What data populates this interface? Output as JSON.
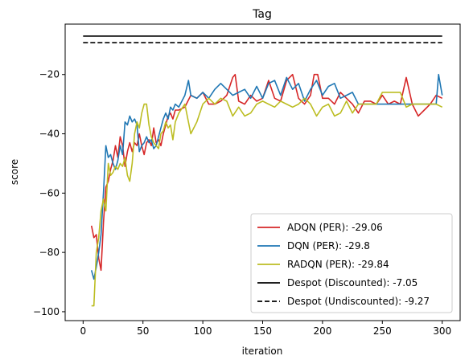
{
  "chart_data": {
    "type": "line",
    "title": "Tag",
    "xlabel": "iteration",
    "ylabel": "score",
    "xlim": [
      -15,
      315
    ],
    "ylim": [
      -103,
      -3
    ],
    "xticks": [
      0,
      50,
      100,
      150,
      200,
      250,
      300
    ],
    "yticks": [
      -100,
      -80,
      -60,
      -40,
      -20
    ],
    "grid": false,
    "legend_position": "lower-right",
    "series": [
      {
        "name": "ADQN (PER): -29.06",
        "color": "#d62728",
        "style": "solid",
        "x": [
          7,
          9,
          11,
          13,
          15,
          17,
          19,
          21,
          23,
          25,
          27,
          29,
          31,
          33,
          35,
          37,
          39,
          41,
          43,
          45,
          47,
          49,
          51,
          53,
          55,
          57,
          59,
          61,
          63,
          65,
          67,
          69,
          71,
          73,
          75,
          77,
          80,
          85,
          90,
          95,
          100,
          105,
          110,
          115,
          120,
          125,
          127,
          130,
          135,
          140,
          145,
          150,
          155,
          160,
          165,
          170,
          175,
          180,
          185,
          190,
          193,
          196,
          200,
          205,
          210,
          215,
          220,
          225,
          230,
          235,
          240,
          245,
          250,
          255,
          260,
          265,
          270,
          275,
          280,
          285,
          290,
          295,
          300
        ],
        "y": [
          -71,
          -75,
          -74,
          -82,
          -86,
          -70,
          -58,
          -56,
          -52,
          -49,
          -44,
          -48,
          -41,
          -44,
          -51,
          -46,
          -43,
          -46,
          -43,
          -44,
          -40,
          -44,
          -47,
          -43,
          -42,
          -44,
          -38,
          -43,
          -42,
          -44,
          -40,
          -37,
          -34,
          -33,
          -35,
          -32,
          -32,
          -31,
          -27,
          -28,
          -26,
          -30,
          -30,
          -29,
          -27,
          -21,
          -20,
          -29,
          -30,
          -27,
          -29,
          -28,
          -22,
          -28,
          -29,
          -22,
          -20,
          -28,
          -30,
          -27,
          -20,
          -20,
          -28,
          -28,
          -30,
          -26,
          -28,
          -30,
          -33,
          -29,
          -29,
          -30,
          -27,
          -30,
          -29,
          -30,
          -21,
          -30,
          -34,
          -32,
          -30,
          -27,
          -28
        ]
      },
      {
        "name": "DQN (PER): -29.8",
        "color": "#1f77b4",
        "style": "solid",
        "x": [
          7,
          9,
          11,
          13,
          15,
          17,
          19,
          21,
          23,
          25,
          27,
          29,
          31,
          33,
          35,
          37,
          39,
          41,
          43,
          45,
          47,
          49,
          51,
          53,
          55,
          57,
          59,
          61,
          63,
          65,
          67,
          69,
          71,
          73,
          75,
          77,
          80,
          85,
          88,
          90,
          95,
          100,
          105,
          110,
          115,
          120,
          125,
          130,
          135,
          140,
          145,
          150,
          155,
          160,
          165,
          170,
          175,
          180,
          185,
          190,
          195,
          200,
          205,
          210,
          215,
          220,
          225,
          230,
          235,
          240,
          245,
          250,
          255,
          260,
          265,
          270,
          275,
          280,
          285,
          290,
          295,
          297,
          300
        ],
        "y": [
          -86,
          -89,
          -85,
          -80,
          -74,
          -60,
          -44,
          -48,
          -47,
          -50,
          -52,
          -49,
          -44,
          -47,
          -36,
          -37,
          -34,
          -36,
          -35,
          -37,
          -46,
          -44,
          -43,
          -41,
          -43,
          -42,
          -45,
          -44,
          -41,
          -38,
          -35,
          -33,
          -35,
          -31,
          -32,
          -30,
          -31,
          -27,
          -22,
          -27,
          -28,
          -26,
          -28,
          -25,
          -23,
          -25,
          -27,
          -26,
          -25,
          -28,
          -24,
          -28,
          -23,
          -22,
          -27,
          -21,
          -25,
          -23,
          -29,
          -25,
          -22,
          -27,
          -24,
          -23,
          -28,
          -27,
          -26,
          -30,
          -30,
          -30,
          -30,
          -30,
          -30,
          -30,
          -30,
          -30,
          -30,
          -30,
          -30,
          -30,
          -30,
          -20,
          -27
        ]
      },
      {
        "name": "RADQN (PER): -29.84",
        "color": "#bcbd22",
        "style": "solid",
        "x": [
          7,
          9,
          11,
          13,
          15,
          17,
          19,
          21,
          23,
          25,
          27,
          29,
          31,
          33,
          35,
          37,
          39,
          41,
          43,
          45,
          47,
          49,
          51,
          53,
          55,
          57,
          59,
          61,
          63,
          65,
          67,
          69,
          71,
          73,
          75,
          77,
          80,
          85,
          90,
          95,
          100,
          105,
          110,
          115,
          120,
          125,
          130,
          135,
          140,
          145,
          150,
          155,
          160,
          165,
          170,
          175,
          180,
          185,
          190,
          195,
          200,
          205,
          210,
          215,
          220,
          225,
          230,
          235,
          240,
          245,
          250,
          255,
          260,
          265,
          270,
          275,
          280,
          285,
          290,
          295,
          300
        ],
        "y": [
          -98,
          -98,
          -80,
          -75,
          -66,
          -62,
          -66,
          -50,
          -54,
          -53,
          -51,
          -52,
          -50,
          -51,
          -48,
          -54,
          -56,
          -50,
          -40,
          -36,
          -38,
          -33,
          -30,
          -30,
          -37,
          -41,
          -43,
          -44,
          -45,
          -40,
          -39,
          -36,
          -38,
          -37,
          -42,
          -36,
          -33,
          -30,
          -40,
          -36,
          -30,
          -28,
          -30,
          -28,
          -29,
          -34,
          -31,
          -34,
          -33,
          -30,
          -29,
          -30,
          -31,
          -29,
          -30,
          -31,
          -30,
          -28,
          -30,
          -34,
          -31,
          -30,
          -34,
          -33,
          -29,
          -33,
          -30,
          -30,
          -30,
          -30,
          -26,
          -26,
          -26,
          -26,
          -31,
          -30,
          -30,
          -30,
          -30,
          -30,
          -31
        ]
      },
      {
        "name": "Despot (Discounted): -7.05",
        "color": "#000000",
        "style": "solid",
        "x": [
          0,
          300
        ],
        "y": [
          -7.05,
          -7.05
        ]
      },
      {
        "name": "Despot (Undiscounted): -9.27",
        "color": "#000000",
        "style": "dashed",
        "x": [
          0,
          300
        ],
        "y": [
          -9.27,
          -9.27
        ]
      }
    ]
  }
}
